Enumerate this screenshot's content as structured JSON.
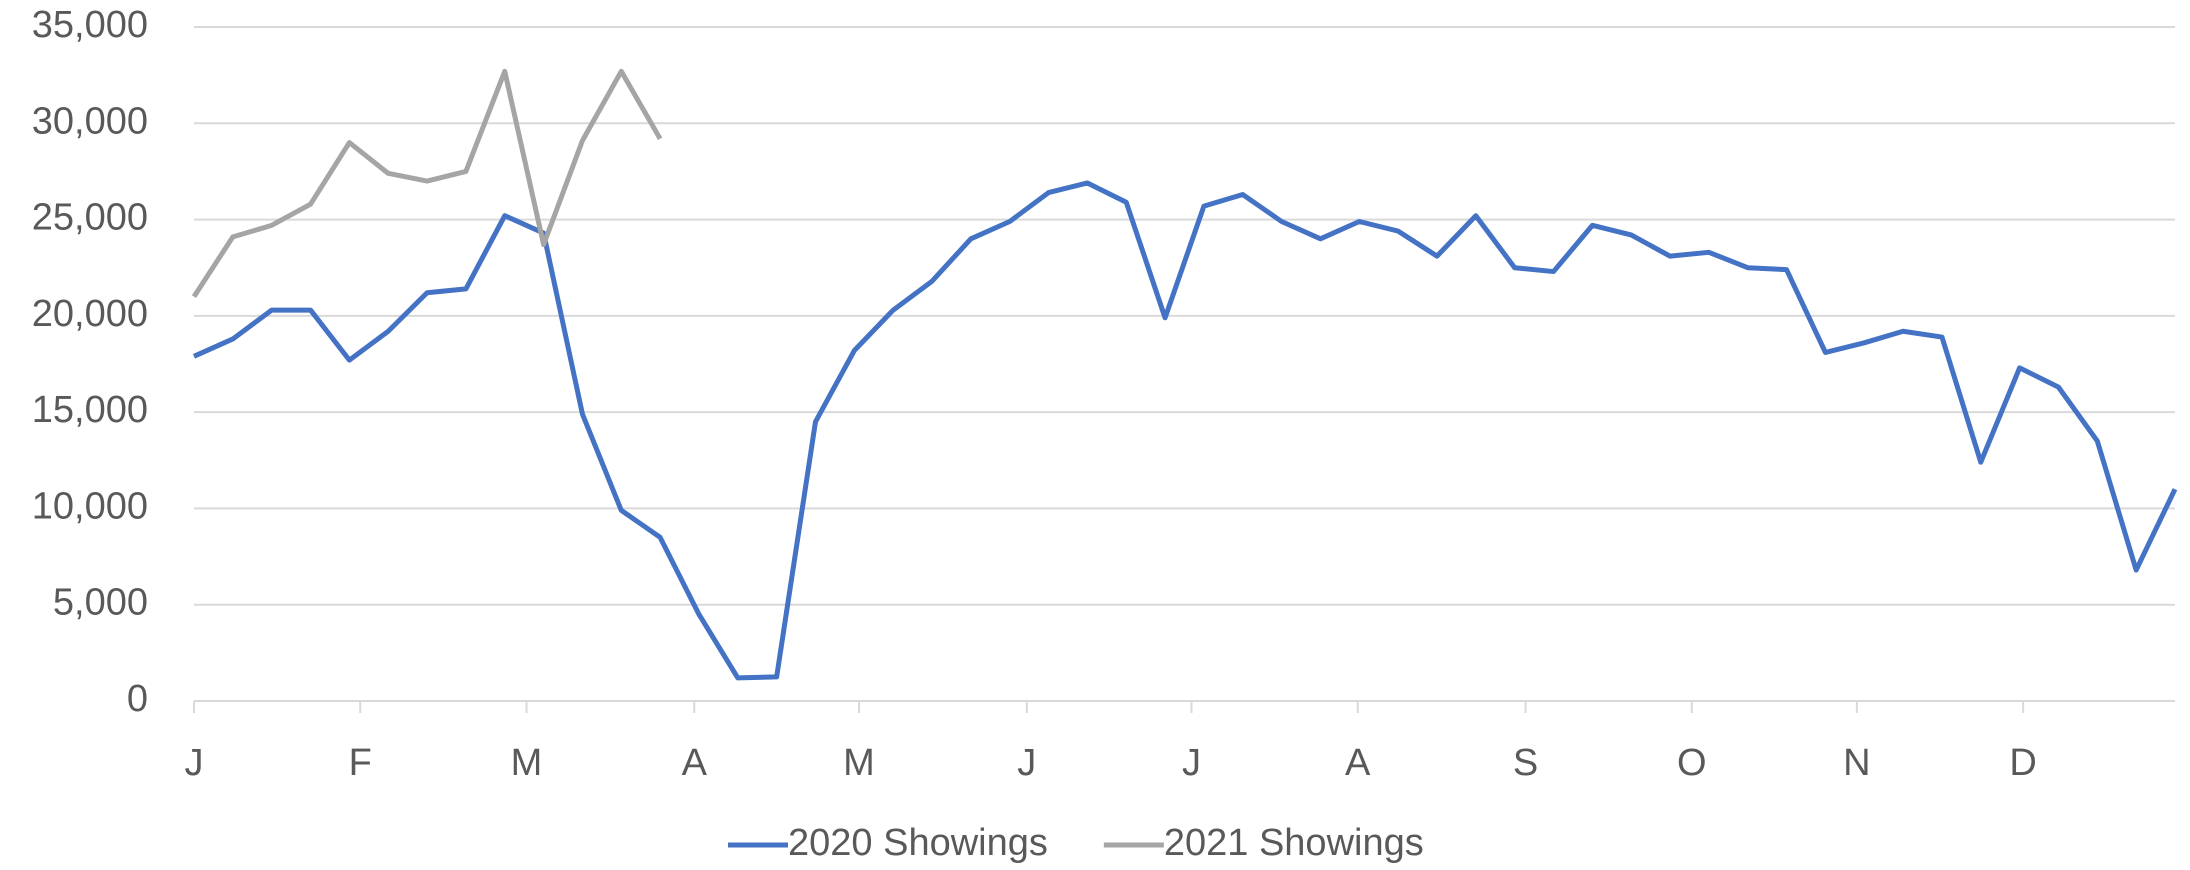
{
  "chart_data": {
    "type": "line",
    "x": [
      0,
      1,
      2,
      3,
      4,
      5,
      6,
      7,
      8,
      9,
      10,
      11,
      12,
      13,
      14,
      15,
      16,
      17,
      18,
      19,
      20,
      21,
      22,
      23,
      24,
      25,
      26,
      27,
      28,
      29,
      30,
      31,
      32,
      33,
      34,
      35,
      36,
      37,
      38,
      39,
      40,
      41,
      42,
      43,
      44,
      45,
      46,
      47,
      48,
      49,
      50,
      51
    ],
    "xlim": [
      0,
      51
    ],
    "xticks": [
      {
        "value": 0,
        "label": "J"
      },
      {
        "value": 4.28,
        "label": "F"
      },
      {
        "value": 8.56,
        "label": "M"
      },
      {
        "value": 12.88,
        "label": "A"
      },
      {
        "value": 17.12,
        "label": "M"
      },
      {
        "value": 21.44,
        "label": "J"
      },
      {
        "value": 25.68,
        "label": "J"
      },
      {
        "value": 29.96,
        "label": "A"
      },
      {
        "value": 34.28,
        "label": "S"
      },
      {
        "value": 38.56,
        "label": "O"
      },
      {
        "value": 42.81,
        "label": "N"
      },
      {
        "value": 47.09,
        "label": "D"
      }
    ],
    "ylim": [
      0,
      35000
    ],
    "yticks": [
      0,
      {
        "value": 5000,
        "label": "5,000"
      },
      {
        "value": 10000,
        "label": "10,000"
      },
      {
        "value": 15000,
        "label": "15,000"
      },
      {
        "value": 20000,
        "label": "20,000"
      },
      {
        "value": 25000,
        "label": "25,000"
      },
      {
        "value": 30000,
        "label": "30,000"
      },
      {
        "value": 35000,
        "label": "35,000"
      }
    ],
    "grid": true,
    "legend": "bottom",
    "series": [
      {
        "name": "2020 Showings",
        "color": "#4472c4",
        "values": [
          17900,
          18800,
          20300,
          20300,
          17700,
          19200,
          21200,
          21400,
          25200,
          24300,
          14900,
          9900,
          8500,
          4500,
          1200,
          1250,
          14500,
          18200,
          20300,
          21800,
          24000,
          24900,
          26400,
          26900,
          25900,
          19900,
          25700,
          26300,
          24900,
          24000,
          24900,
          24400,
          23100,
          25200,
          22500,
          22300,
          24700,
          24200,
          23100,
          23300,
          22500,
          22400,
          18100,
          18600,
          19200,
          18900,
          12400,
          17300,
          16300,
          13500,
          6800,
          11000
        ]
      },
      {
        "name": "2021 Showings",
        "color": "#a5a5a5",
        "values": [
          21000,
          24100,
          24700,
          25800,
          29000,
          27400,
          27000,
          27500,
          32700,
          23700,
          29100,
          32700,
          29200,
          null,
          null,
          null,
          null,
          null,
          null,
          null,
          null,
          null,
          null,
          null,
          null,
          null,
          null,
          null,
          null,
          null,
          null,
          null,
          null,
          null,
          null,
          null,
          null,
          null,
          null,
          null,
          null,
          null,
          null,
          null,
          null,
          null,
          null,
          null,
          null,
          null,
          null,
          null
        ]
      }
    ]
  }
}
